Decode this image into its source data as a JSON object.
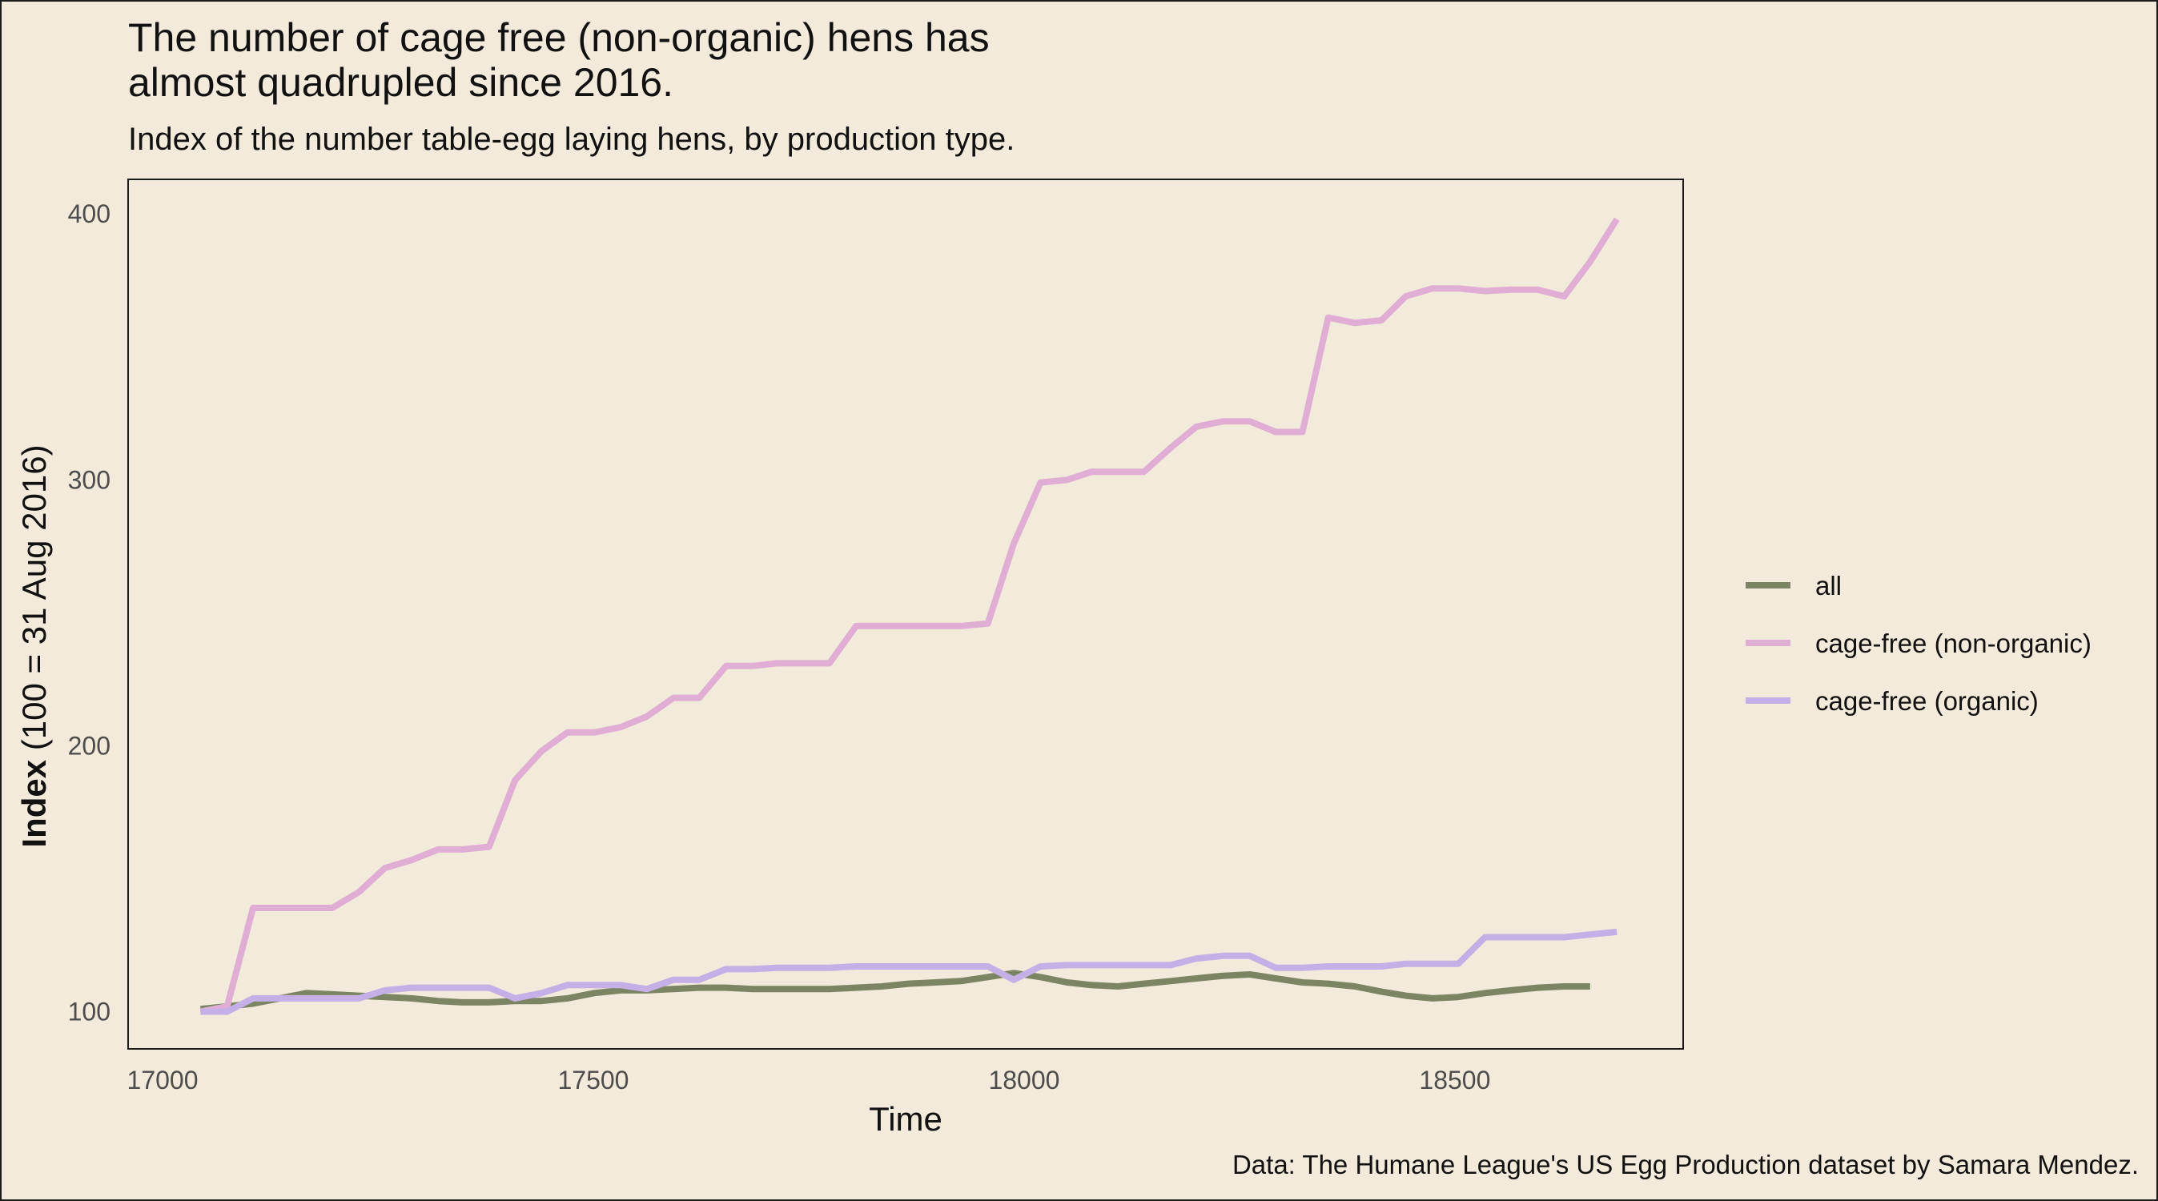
{
  "chart_data": {
    "type": "line",
    "title_lines": [
      "The number of cage free (non-organic) hens has",
      "almost quadrupled since 2016."
    ],
    "subtitle": "Index of the number table-egg laying hens, by production type.",
    "caption": "Data: The Humane League's US Egg Production dataset by Samara Mendez.",
    "xlabel": "Time",
    "ylabel_bold": "Index",
    "ylabel_rest": " (100 = 31 Aug 2016)",
    "xlim": [
      16960,
      18765
    ],
    "ylim": [
      86,
      413
    ],
    "xticks": [
      17000,
      17500,
      18000,
      18500
    ],
    "yticks": [
      100,
      200,
      300,
      400
    ],
    "grid": false,
    "legend_position": "right",
    "series": [
      {
        "name": "all",
        "color": "#7b8563",
        "points": [
          [
            17044,
            101
          ],
          [
            17075,
            102
          ],
          [
            17105,
            103
          ],
          [
            17136,
            105
          ],
          [
            17167,
            107
          ],
          [
            17197,
            106.5
          ],
          [
            17228,
            106
          ],
          [
            17258,
            105.5
          ],
          [
            17289,
            105
          ],
          [
            17320,
            104
          ],
          [
            17348,
            103.5
          ],
          [
            17379,
            103.5
          ],
          [
            17409,
            104
          ],
          [
            17440,
            104
          ],
          [
            17470,
            105
          ],
          [
            17501,
            107
          ],
          [
            17532,
            108
          ],
          [
            17562,
            108
          ],
          [
            17593,
            108.5
          ],
          [
            17623,
            109
          ],
          [
            17654,
            109
          ],
          [
            17685,
            108.5
          ],
          [
            17713,
            108.5
          ],
          [
            17744,
            108.5
          ],
          [
            17774,
            108.5
          ],
          [
            17805,
            109
          ],
          [
            17835,
            109.5
          ],
          [
            17866,
            110.5
          ],
          [
            17897,
            111
          ],
          [
            17927,
            111.5
          ],
          [
            17958,
            113
          ],
          [
            17988,
            114.5
          ],
          [
            18019,
            113
          ],
          [
            18050,
            111
          ],
          [
            18078,
            110
          ],
          [
            18109,
            109.5
          ],
          [
            18139,
            110.5
          ],
          [
            18170,
            111.5
          ],
          [
            18200,
            112.5
          ],
          [
            18231,
            113.5
          ],
          [
            18262,
            114
          ],
          [
            18292,
            112.5
          ],
          [
            18323,
            111
          ],
          [
            18353,
            110.5
          ],
          [
            18384,
            109.5
          ],
          [
            18415,
            107.5
          ],
          [
            18443,
            106
          ],
          [
            18474,
            105
          ],
          [
            18504,
            105.5
          ],
          [
            18535,
            107
          ],
          [
            18565,
            108
          ],
          [
            18596,
            109
          ],
          [
            18627,
            109.5
          ],
          [
            18657,
            109.5
          ]
        ]
      },
      {
        "name": "cage-free (non-organic)",
        "color": "#e0aed4",
        "points": [
          [
            17044,
            100
          ],
          [
            17075,
            102
          ],
          [
            17105,
            139
          ],
          [
            17136,
            139
          ],
          [
            17167,
            139
          ],
          [
            17197,
            139
          ],
          [
            17228,
            145
          ],
          [
            17258,
            154
          ],
          [
            17289,
            157
          ],
          [
            17320,
            161
          ],
          [
            17348,
            161
          ],
          [
            17379,
            162
          ],
          [
            17409,
            187
          ],
          [
            17440,
            198
          ],
          [
            17470,
            205
          ],
          [
            17501,
            205
          ],
          [
            17532,
            207
          ],
          [
            17562,
            211
          ],
          [
            17593,
            218
          ],
          [
            17623,
            218
          ],
          [
            17654,
            230
          ],
          [
            17685,
            230
          ],
          [
            17713,
            231
          ],
          [
            17744,
            231
          ],
          [
            17774,
            231
          ],
          [
            17805,
            245
          ],
          [
            17835,
            245
          ],
          [
            17866,
            245
          ],
          [
            17897,
            245
          ],
          [
            17927,
            245
          ],
          [
            17958,
            246
          ],
          [
            17988,
            276
          ],
          [
            18019,
            299
          ],
          [
            18050,
            300
          ],
          [
            18078,
            303
          ],
          [
            18109,
            303
          ],
          [
            18139,
            303
          ],
          [
            18170,
            312
          ],
          [
            18200,
            320
          ],
          [
            18231,
            322
          ],
          [
            18262,
            322
          ],
          [
            18292,
            318
          ],
          [
            18323,
            318
          ],
          [
            18353,
            361
          ],
          [
            18384,
            359
          ],
          [
            18415,
            360
          ],
          [
            18443,
            369
          ],
          [
            18474,
            372
          ],
          [
            18504,
            372
          ],
          [
            18535,
            371
          ],
          [
            18565,
            371.5
          ],
          [
            18596,
            371.5
          ],
          [
            18627,
            369
          ],
          [
            18657,
            382
          ],
          [
            18688,
            398
          ]
        ]
      },
      {
        "name": "cage-free (organic)",
        "color": "#c4b0e6",
        "points": [
          [
            17044,
            100
          ],
          [
            17075,
            100
          ],
          [
            17105,
            105
          ],
          [
            17136,
            105
          ],
          [
            17167,
            105
          ],
          [
            17197,
            105
          ],
          [
            17228,
            105
          ],
          [
            17258,
            108
          ],
          [
            17289,
            109
          ],
          [
            17320,
            109
          ],
          [
            17348,
            109
          ],
          [
            17379,
            109
          ],
          [
            17409,
            105
          ],
          [
            17440,
            107
          ],
          [
            17470,
            110
          ],
          [
            17501,
            110
          ],
          [
            17532,
            110
          ],
          [
            17562,
            108.5
          ],
          [
            17593,
            112
          ],
          [
            17623,
            112
          ],
          [
            17654,
            116
          ],
          [
            17685,
            116
          ],
          [
            17713,
            116.5
          ],
          [
            17744,
            116.5
          ],
          [
            17774,
            116.5
          ],
          [
            17805,
            117
          ],
          [
            17835,
            117
          ],
          [
            17866,
            117
          ],
          [
            17897,
            117
          ],
          [
            17927,
            117
          ],
          [
            17958,
            117
          ],
          [
            17988,
            112
          ],
          [
            18019,
            117
          ],
          [
            18050,
            117.5
          ],
          [
            18078,
            117.5
          ],
          [
            18109,
            117.5
          ],
          [
            18139,
            117.5
          ],
          [
            18170,
            117.5
          ],
          [
            18200,
            120
          ],
          [
            18231,
            121
          ],
          [
            18262,
            121
          ],
          [
            18292,
            116.5
          ],
          [
            18323,
            116.5
          ],
          [
            18353,
            117
          ],
          [
            18384,
            117
          ],
          [
            18415,
            117
          ],
          [
            18443,
            118
          ],
          [
            18474,
            118
          ],
          [
            18504,
            118
          ],
          [
            18535,
            128
          ],
          [
            18565,
            128
          ],
          [
            18596,
            128
          ],
          [
            18627,
            128
          ],
          [
            18657,
            129
          ],
          [
            18688,
            130
          ]
        ]
      }
    ]
  }
}
